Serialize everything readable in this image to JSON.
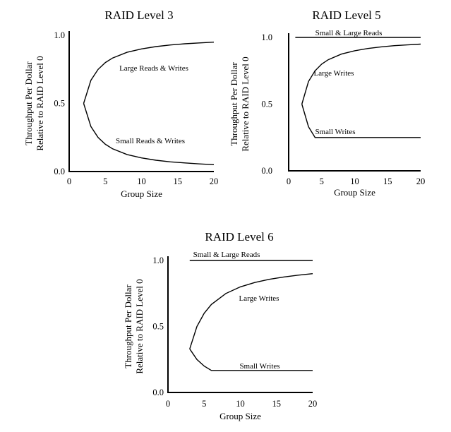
{
  "chart_data": [
    {
      "type": "line",
      "title": "RAID Level 3",
      "xlabel": "Group Size",
      "ylabel": [
        "Throughput Per Dollar",
        "Relative to RAID Level 0"
      ],
      "xlim": [
        0,
        20
      ],
      "ylim": [
        0,
        1
      ],
      "xticks": [
        "0",
        "5",
        "10",
        "15",
        "20"
      ],
      "yticks": [
        "0.0",
        "0.5",
        "1.0"
      ],
      "series": [
        {
          "name": "Large Reads & Writes",
          "x": [
            2,
            3,
            4,
            5,
            6,
            8,
            10,
            12,
            14,
            16,
            18,
            20
          ],
          "values": [
            0.5,
            0.67,
            0.75,
            0.8,
            0.833,
            0.875,
            0.9,
            0.917,
            0.929,
            0.938,
            0.944,
            0.95
          ]
        },
        {
          "name": "Small Reads & Writes",
          "x": [
            2,
            3,
            4,
            5,
            6,
            8,
            10,
            12,
            14,
            16,
            18,
            20
          ],
          "values": [
            0.5,
            0.33,
            0.25,
            0.2,
            0.167,
            0.125,
            0.1,
            0.083,
            0.071,
            0.063,
            0.056,
            0.05
          ]
        }
      ]
    },
    {
      "type": "line",
      "title": "RAID Level 5",
      "xlabel": "Group Size",
      "ylabel": [
        "Throughput Per Dollar",
        "Relative to RAID Level 0"
      ],
      "xlim": [
        0,
        20
      ],
      "ylim": [
        0,
        1
      ],
      "xticks": [
        "0",
        "5",
        "10",
        "15",
        "20"
      ],
      "yticks": [
        "0.0",
        "0.5",
        "1.0"
      ],
      "series": [
        {
          "name": "Small & Large Reads",
          "x": [
            1,
            20
          ],
          "values": [
            1.0,
            1.0
          ]
        },
        {
          "name": "Large Writes",
          "x": [
            2,
            3,
            4,
            5,
            6,
            8,
            10,
            12,
            14,
            16,
            18,
            20
          ],
          "values": [
            0.5,
            0.67,
            0.75,
            0.8,
            0.833,
            0.875,
            0.9,
            0.917,
            0.929,
            0.938,
            0.944,
            0.95
          ]
        },
        {
          "name": "Small Writes",
          "x": [
            2,
            3,
            4,
            6,
            10,
            15,
            20
          ],
          "values": [
            0.5,
            0.33,
            0.25,
            0.25,
            0.25,
            0.25,
            0.25
          ]
        }
      ]
    },
    {
      "type": "line",
      "title": "RAID Level 6",
      "xlabel": "Group Size",
      "ylabel": [
        "Throughput Per Dollar",
        "Relative to RAID Level 0"
      ],
      "xlim": [
        0,
        20
      ],
      "ylim": [
        0,
        1
      ],
      "xticks": [
        "0",
        "5",
        "10",
        "15",
        "20"
      ],
      "yticks": [
        "0.0",
        "0.5",
        "1.0"
      ],
      "series": [
        {
          "name": "Small & Large Reads",
          "x": [
            3,
            20
          ],
          "values": [
            1.0,
            1.0
          ]
        },
        {
          "name": "Large Writes",
          "x": [
            3,
            4,
            5,
            6,
            8,
            10,
            12,
            14,
            16,
            18,
            20
          ],
          "values": [
            0.33,
            0.5,
            0.6,
            0.667,
            0.75,
            0.8,
            0.833,
            0.857,
            0.875,
            0.889,
            0.9
          ]
        },
        {
          "name": "Small Writes",
          "x": [
            3,
            4,
            5,
            6,
            10,
            15,
            20
          ],
          "values": [
            0.33,
            0.25,
            0.2,
            0.167,
            0.167,
            0.167,
            0.167
          ]
        }
      ]
    }
  ]
}
